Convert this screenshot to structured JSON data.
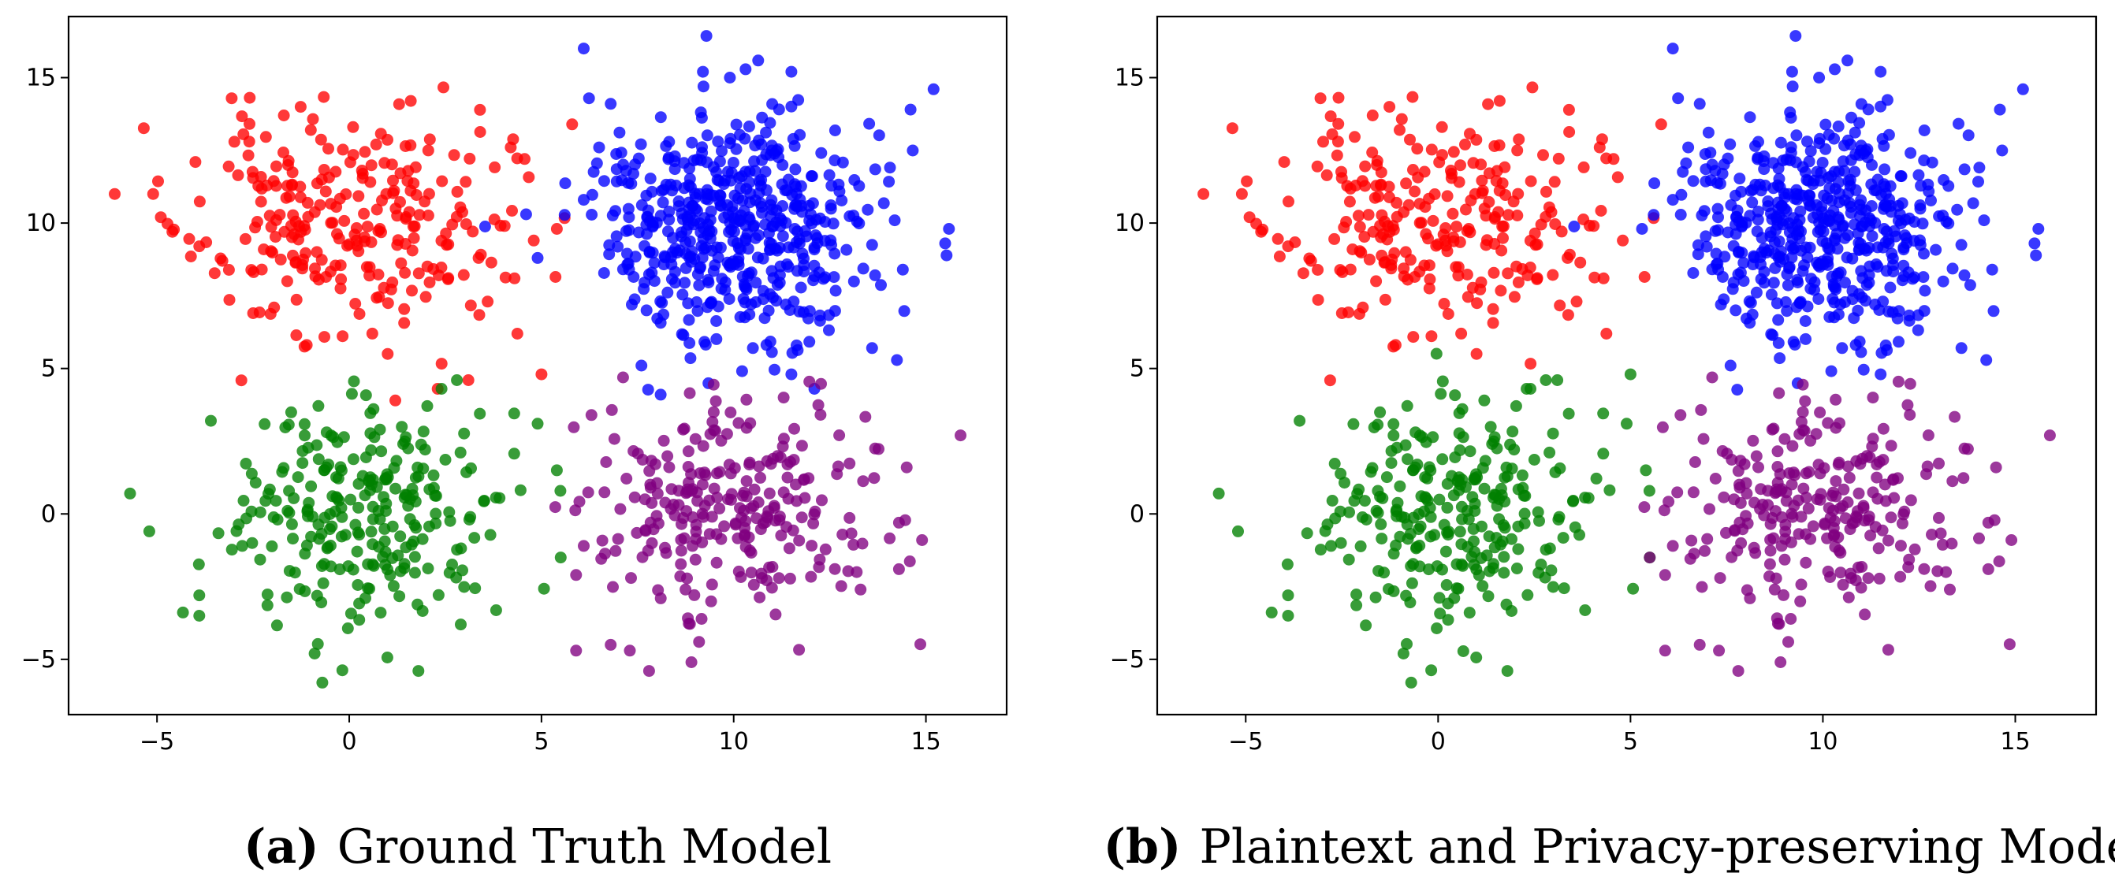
{
  "figure": {
    "panels": [
      {
        "letter": "(a)",
        "caption": "Ground Truth Model"
      },
      {
        "letter": "(b)",
        "caption": "Plaintext and Privacy-preserving Model"
      }
    ]
  },
  "chart_data": [
    {
      "type": "scatter",
      "title": "",
      "caption": "(a) Ground Truth Model",
      "xlabel": "",
      "ylabel": "",
      "xlim": [
        -7.3,
        17.1
      ],
      "ylim": [
        -6.9,
        17.1
      ],
      "xticks": [
        -5,
        0,
        5,
        10,
        15
      ],
      "yticks": [
        -5,
        0,
        5,
        10,
        15
      ],
      "grid": false,
      "series": [
        {
          "name": "cluster-red",
          "color": "#ff0000",
          "center": [
            0.0,
            10.0
          ],
          "spread": [
            2.0,
            1.9
          ],
          "count": 250,
          "points": [
            [
              -6.1,
              11.0
            ],
            [
              -5.1,
              11.0
            ],
            [
              -4.9,
              10.2
            ],
            [
              -4.6,
              9.7
            ],
            [
              -4.0,
              12.1
            ],
            [
              -3.9,
              9.2
            ],
            [
              -3.3,
              8.7
            ],
            [
              -2.6,
              12.8
            ],
            [
              -2.5,
              6.9
            ],
            [
              -1.9,
              10.1
            ],
            [
              -1.7,
              13.7
            ],
            [
              -1.0,
              13.2
            ],
            [
              0.1,
              13.3
            ],
            [
              0.6,
              6.2
            ],
            [
              0.7,
              12.7
            ],
            [
              1.0,
              5.5
            ],
            [
              1.2,
              3.9
            ],
            [
              1.6,
              14.2
            ],
            [
              2.3,
              4.3
            ],
            [
              3.1,
              4.6
            ],
            [
              3.6,
              7.3
            ],
            [
              4.2,
              12.6
            ],
            [
              4.3,
              8.1
            ],
            [
              4.8,
              9.4
            ],
            [
              5.0,
              4.8
            ],
            [
              5.4,
              9.8
            ]
          ]
        },
        {
          "name": "cluster-blue",
          "color": "#0000ff",
          "center": [
            10.0,
            10.0
          ],
          "spread": [
            1.9,
            2.0
          ],
          "count": 500,
          "points": [
            [
              4.6,
              10.3
            ],
            [
              4.9,
              8.8
            ],
            [
              6.1,
              16.0
            ],
            [
              6.1,
              10.8
            ],
            [
              6.5,
              12.6
            ],
            [
              6.8,
              14.1
            ],
            [
              7.2,
              11.8
            ],
            [
              7.6,
              5.1
            ],
            [
              8.1,
              4.1
            ],
            [
              9.2,
              15.2
            ],
            [
              9.9,
              15.0
            ],
            [
              10.5,
              5.7
            ],
            [
              11.5,
              15.2
            ],
            [
              11.5,
              4.8
            ],
            [
              12.1,
              4.3
            ],
            [
              13.6,
              5.7
            ],
            [
              14.4,
              8.4
            ],
            [
              14.6,
              13.9
            ],
            [
              15.2,
              14.6
            ],
            [
              15.6,
              9.8
            ],
            [
              15.5,
              9.3
            ]
          ]
        },
        {
          "name": "cluster-green",
          "color": "#008000",
          "center": [
            0.5,
            0.0
          ],
          "spread": [
            1.9,
            1.8
          ],
          "count": 250,
          "points": [
            [
              -5.7,
              0.7
            ],
            [
              -5.2,
              -0.6
            ],
            [
              -3.9,
              -3.5
            ],
            [
              -3.9,
              -2.8
            ],
            [
              -3.6,
              3.2
            ],
            [
              -0.9,
              -4.8
            ],
            [
              -0.7,
              -5.8
            ],
            [
              0.8,
              2.9
            ],
            [
              1.8,
              -5.4
            ],
            [
              2.4,
              4.3
            ],
            [
              2.8,
              4.6
            ],
            [
              2.9,
              -3.8
            ],
            [
              4.9,
              3.1
            ],
            [
              5.4,
              1.5
            ],
            [
              5.5,
              -1.5
            ]
          ]
        },
        {
          "name": "cluster-purple",
          "color": "#800080",
          "center": [
            10.0,
            0.0
          ],
          "spread": [
            1.9,
            1.9
          ],
          "count": 250,
          "points": [
            [
              5.9,
              -2.1
            ],
            [
              5.9,
              -4.7
            ],
            [
              6.1,
              -1.1
            ],
            [
              6.3,
              3.4
            ],
            [
              6.8,
              -4.5
            ],
            [
              7.3,
              -4.7
            ],
            [
              7.8,
              -5.4
            ],
            [
              8.9,
              -5.1
            ],
            [
              9.1,
              -4.4
            ],
            [
              11.3,
              4.0
            ],
            [
              13.2,
              -2.0
            ],
            [
              13.3,
              -2.6
            ],
            [
              14.3,
              -1.9
            ],
            [
              14.3,
              -0.3
            ],
            [
              14.5,
              1.6
            ],
            [
              14.9,
              -0.9
            ],
            [
              15.9,
              2.7
            ]
          ]
        }
      ]
    },
    {
      "type": "scatter",
      "title": "",
      "caption": "(b) Plaintext and Privacy-preserving Model",
      "xlabel": "",
      "ylabel": "",
      "xlim": [
        -7.3,
        17.1
      ],
      "ylim": [
        -6.9,
        17.1
      ],
      "xticks": [
        -5,
        0,
        5,
        10,
        15
      ],
      "yticks": [
        -5,
        0,
        5,
        10,
        15
      ],
      "grid": false,
      "series": [
        {
          "name": "cluster-red",
          "color": "#ff0000",
          "center": [
            0.0,
            10.0
          ],
          "spread": [
            2.0,
            1.9
          ],
          "count": 245,
          "points": [
            [
              -6.1,
              11.0
            ],
            [
              -5.1,
              11.0
            ],
            [
              -4.9,
              10.2
            ],
            [
              -4.6,
              9.7
            ],
            [
              -4.0,
              12.1
            ],
            [
              -3.9,
              9.2
            ],
            [
              -3.3,
              8.7
            ],
            [
              -2.6,
              12.8
            ],
            [
              -2.5,
              6.9
            ],
            [
              -1.7,
              13.7
            ],
            [
              -1.0,
              13.2
            ],
            [
              0.1,
              13.3
            ],
            [
              0.6,
              6.2
            ],
            [
              0.7,
              12.7
            ],
            [
              1.0,
              5.5
            ],
            [
              1.6,
              14.2
            ],
            [
              3.6,
              7.3
            ],
            [
              4.2,
              12.6
            ],
            [
              4.3,
              8.1
            ],
            [
              4.8,
              9.4
            ]
          ]
        },
        {
          "name": "cluster-blue",
          "color": "#0000ff",
          "center": [
            10.0,
            10.0
          ],
          "spread": [
            1.9,
            2.0
          ],
          "count": 500,
          "points": [
            [
              5.3,
              9.8
            ],
            [
              6.1,
              16.0
            ],
            [
              6.1,
              10.8
            ],
            [
              6.5,
              12.6
            ],
            [
              6.8,
              14.1
            ],
            [
              7.2,
              11.8
            ],
            [
              7.6,
              5.1
            ],
            [
              9.2,
              15.2
            ],
            [
              9.9,
              15.0
            ],
            [
              10.5,
              5.7
            ],
            [
              11.5,
              15.2
            ],
            [
              11.5,
              4.8
            ],
            [
              13.6,
              5.7
            ],
            [
              14.4,
              8.4
            ],
            [
              14.6,
              13.9
            ],
            [
              15.2,
              14.6
            ],
            [
              15.6,
              9.8
            ],
            [
              15.5,
              9.3
            ]
          ]
        },
        {
          "name": "cluster-green",
          "color": "#008000",
          "center": [
            0.5,
            0.0
          ],
          "spread": [
            1.9,
            1.8
          ],
          "count": 260,
          "points": [
            [
              -5.7,
              0.7
            ],
            [
              -5.2,
              -0.6
            ],
            [
              -3.9,
              -3.5
            ],
            [
              -3.9,
              -2.8
            ],
            [
              -3.6,
              3.2
            ],
            [
              -0.9,
              -4.8
            ],
            [
              -0.7,
              -5.8
            ],
            [
              1.2,
              3.9
            ],
            [
              1.8,
              -5.4
            ],
            [
              2.3,
              4.3
            ],
            [
              2.4,
              4.3
            ],
            [
              2.8,
              4.6
            ],
            [
              3.1,
              4.6
            ],
            [
              4.9,
              3.1
            ],
            [
              5.0,
              4.8
            ],
            [
              5.4,
              1.5
            ],
            [
              5.5,
              -1.5
            ]
          ]
        },
        {
          "name": "cluster-purple",
          "color": "#800080",
          "center": [
            10.0,
            0.0
          ],
          "spread": [
            1.9,
            1.9
          ],
          "count": 250,
          "points": [
            [
              5.5,
              -1.5
            ],
            [
              5.9,
              -2.1
            ],
            [
              5.9,
              -4.7
            ],
            [
              6.1,
              -1.1
            ],
            [
              6.3,
              3.4
            ],
            [
              6.8,
              -4.5
            ],
            [
              7.3,
              -4.7
            ],
            [
              7.8,
              -5.4
            ],
            [
              8.9,
              -5.1
            ],
            [
              9.1,
              -4.4
            ],
            [
              11.3,
              4.0
            ],
            [
              13.2,
              -2.0
            ],
            [
              13.3,
              -2.6
            ],
            [
              14.3,
              -1.9
            ],
            [
              14.3,
              -0.3
            ],
            [
              14.5,
              1.6
            ],
            [
              14.9,
              -0.9
            ],
            [
              15.9,
              2.7
            ]
          ]
        }
      ]
    }
  ]
}
